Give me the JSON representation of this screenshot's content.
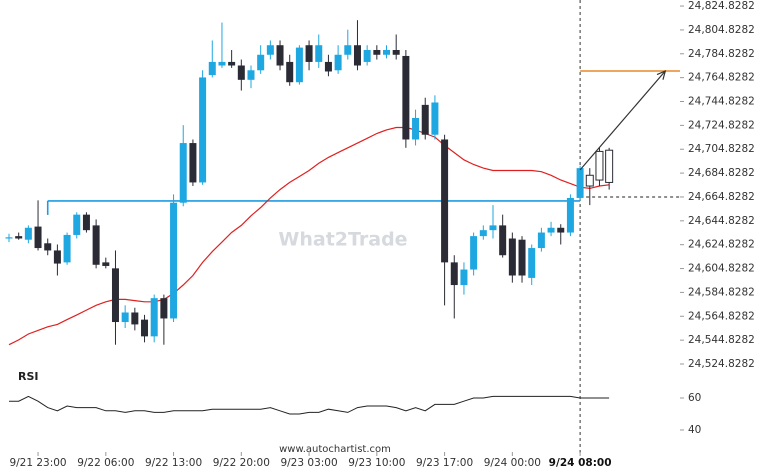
{
  "chart_data": [
    {
      "type": "candlestick",
      "xlim": [
        -0.93,
        69.32
      ],
      "ylim": [
        24519.8,
        24829.9
      ],
      "yticks": [
        {
          "value": 24824.8282,
          "label": "24,824.8282"
        },
        {
          "value": 24804.8282,
          "label": "24,804.8282"
        },
        {
          "value": 24784.8282,
          "label": "24,784.8282"
        },
        {
          "value": 24764.8282,
          "label": "24,764.8282"
        },
        {
          "value": 24744.8282,
          "label": "24,744.8282"
        },
        {
          "value": 24724.8282,
          "label": "24,724.8282"
        },
        {
          "value": 24704.8282,
          "label": "24,704.8282"
        },
        {
          "value": 24684.8282,
          "label": "24,684.8282"
        },
        {
          "value": 24664.8282,
          "label": "24,664.8282"
        },
        {
          "value": 24644.8282,
          "label": "24,644.8282"
        },
        {
          "value": 24624.8282,
          "label": "24,624.8282"
        },
        {
          "value": 24604.8282,
          "label": "24,604.8282"
        },
        {
          "value": 24584.8282,
          "label": "24,584.8282"
        },
        {
          "value": 24564.8282,
          "label": "24,564.8282"
        },
        {
          "value": 24544.8282,
          "label": "24,544.8282"
        },
        {
          "value": 24524.8282,
          "label": "24,524.8282"
        }
      ],
      "up_color": "#1ea7e1",
      "down_color": "#2b2b35",
      "hollow_from": 60,
      "open": [
        24630,
        24632,
        24629,
        24640,
        24626,
        24620,
        24610,
        24633,
        24650,
        24641,
        24610,
        24605,
        24560,
        24568,
        24562,
        24548,
        24580,
        24563,
        24660,
        24710,
        24677,
        24767,
        24775,
        24778,
        24775,
        24763,
        24771,
        24784,
        24792,
        24778,
        24761,
        24792,
        24778,
        24778,
        24771,
        24784,
        24792,
        24778,
        24788,
        24784,
        24788,
        24783,
        24713,
        24742,
        24717,
        24713,
        24610,
        24591,
        24604,
        24632,
        24637,
        24641,
        24630,
        24629,
        24597,
        24622,
        24635,
        24639,
        24635,
        24664,
        24674,
        24679,
        24677
      ],
      "high": [
        24634,
        24635,
        24641,
        24662,
        24630,
        24625,
        24635,
        24652,
        24652,
        24646,
        24614,
        24620,
        24574,
        24572,
        24566,
        24583,
        24583,
        24667,
        24725,
        24713,
        24771,
        24796,
        24811,
        24788,
        24780,
        24775,
        24792,
        24796,
        24796,
        24784,
        24792,
        24796,
        24801,
        24784,
        24792,
        24805,
        24813,
        24792,
        24792,
        24792,
        24801,
        24788,
        24738,
        24748,
        24750,
        24717,
        24616,
        24610,
        24635,
        24641,
        24658,
        24650,
        24635,
        24632,
        24625,
        24639,
        24644,
        24642,
        24667,
        24691,
        24689,
        24706,
        24706
      ],
      "low": [
        24627,
        24629,
        24626,
        24620,
        24616,
        24599,
        24608,
        24630,
        24635,
        24605,
        24605,
        24541,
        24555,
        24553,
        24543,
        24543,
        24541,
        24560,
        24657,
        24674,
        24675,
        24765,
        24773,
        24773,
        24754,
        24756,
        24768,
        24780,
        24771,
        24758,
        24759,
        24771,
        24773,
        24766,
        24768,
        24780,
        24771,
        24775,
        24780,
        24781,
        24780,
        24706,
        24708,
        24713,
        24713,
        24574,
        24563,
        24583,
        24599,
        24629,
        24630,
        24614,
        24593,
        24593,
        24591,
        24619,
        24632,
        24625,
        24632,
        24662,
        24658,
        24674,
        24671
      ],
      "close": [
        24631,
        24630,
        24639,
        24622,
        24620,
        24609,
        24633,
        24650,
        24637,
        24608,
        24607,
        24560,
        24568,
        24558,
        24548,
        24580,
        24563,
        24660,
        24710,
        24677,
        24765,
        24778,
        24778,
        24775,
        24763,
        24771,
        24784,
        24792,
        24775,
        24761,
        24790,
        24778,
        24792,
        24770,
        24784,
        24792,
        24775,
        24788,
        24784,
        24788,
        24784,
        24713,
        24731,
        24717,
        24744,
        24610,
        24591,
        24604,
        24632,
        24637,
        24641,
        24616,
        24599,
        24599,
        24622,
        24635,
        24639,
        24635,
        24664,
        24689,
        24683,
        24703,
        24704
      ],
      "ma": {
        "color": "#e02020",
        "values": [
          24541,
          24545,
          24550,
          24553,
          24556,
          24558,
          24562,
          24566,
          24570,
          24574,
          24577,
          24579,
          24579,
          24578,
          24577,
          24577,
          24579,
          24584,
          24591,
          24599,
          24610,
          24619,
          24627,
          24635,
          24641,
          24649,
          24656,
          24664,
          24671,
          24677,
          24682,
          24687,
          24693,
          24698,
          24702,
          24706,
          24710,
          24714,
          24718,
          24721,
          24723,
          24723,
          24721,
          24718,
          24715,
          24708,
          24702,
          24696,
          24692,
          24689,
          24687,
          24687,
          24687,
          24687,
          24687,
          24686,
          24683,
          24679,
          24676,
          24673,
          24672,
          24674,
          24675
        ]
      },
      "levels": [
        {
          "value": 24661.5,
          "from": 4,
          "to": 59,
          "color": "#1e9be0",
          "style": "solid"
        },
        {
          "value": 24770.4,
          "from": 59,
          "to": 69.32,
          "color": "#e8892a",
          "style": "solid"
        },
        {
          "value": 24664.8,
          "from": 59,
          "to": 69.32,
          "color": "#222222",
          "style": "dashed"
        }
      ],
      "arrow": {
        "x": [
          59,
          67.8
        ],
        "y": [
          24687.5,
          24770.4
        ],
        "color": "#333333"
      },
      "marker_x": 59,
      "watermark": "What2Trade"
    },
    {
      "type": "line",
      "title": "RSI",
      "xlim": [
        -0.93,
        69.32
      ],
      "ylim": [
        30.6,
        77.5
      ],
      "yticks": [
        60,
        40
      ],
      "color": "#222222",
      "values": [
        58,
        58,
        61,
        58,
        54,
        52,
        55,
        54,
        54,
        54,
        52,
        52,
        51,
        52,
        52,
        51,
        51,
        52,
        52,
        52,
        52,
        53,
        53,
        53,
        53,
        53,
        53,
        54,
        52,
        50,
        50,
        51,
        51,
        53,
        52,
        51,
        54,
        55,
        55,
        55,
        54,
        52,
        54,
        52,
        56,
        56,
        56,
        58,
        60,
        60,
        61,
        61,
        61,
        61,
        61,
        61,
        61,
        61,
        61,
        60,
        60,
        60,
        60
      ],
      "xticks": [
        {
          "value": 3,
          "label": "9/21 23:00"
        },
        {
          "value": 10,
          "label": "9/22 06:00"
        },
        {
          "value": 17,
          "label": "9/22 13:00"
        },
        {
          "value": 24,
          "label": "9/22 20:00"
        },
        {
          "value": 31,
          "label": "9/23 03:00"
        },
        {
          "value": 38,
          "label": "9/23 10:00"
        },
        {
          "value": 45,
          "label": "9/23 17:00"
        },
        {
          "value": 52,
          "label": "9/24 00:00"
        },
        {
          "value": 59,
          "label": "9/24 08:00"
        }
      ],
      "footer": "www.autochartist.com"
    }
  ]
}
